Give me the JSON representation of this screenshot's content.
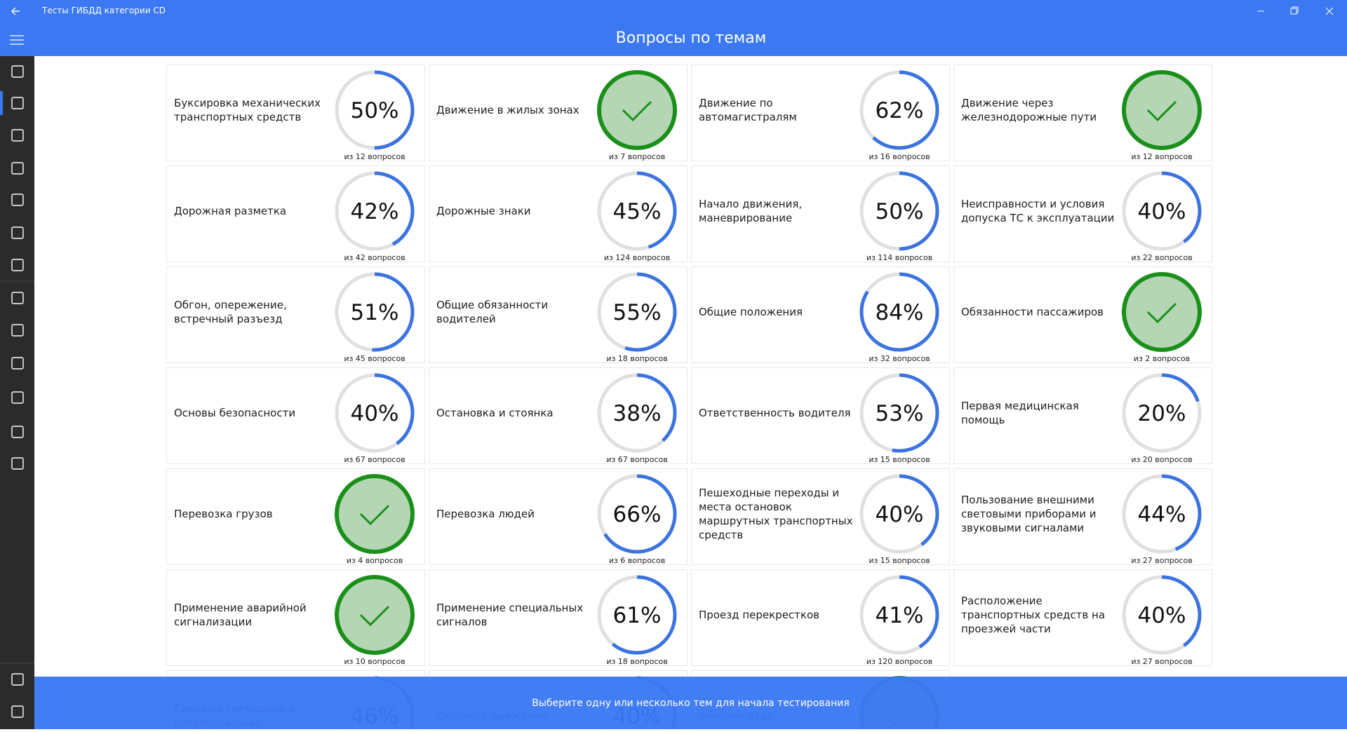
{
  "app_title": "Тесты ГИБДД категории CD",
  "header": {
    "title": "Вопросы по темам"
  },
  "topics": [
    {
      "name": "Буксировка механических транспортных средств",
      "percent": 50,
      "percent_label": "50%",
      "count": "из 12 вопросов"
    },
    {
      "name": "Движение в жилых зонах",
      "completed": true,
      "count": "из 7 вопросов"
    },
    {
      "name": "Движение по автомагистралям",
      "percent": 62,
      "percent_label": "62%",
      "count": "из 16 вопросов"
    },
    {
      "name": "Движение через железнодорожные пути",
      "completed": true,
      "count": "из 12 вопросов"
    },
    {
      "name": "Дорожная разметка",
      "percent": 42,
      "percent_label": "42%",
      "count": "из 42 вопросов"
    },
    {
      "name": "Дорожные знаки",
      "percent": 45,
      "percent_label": "45%",
      "count": "из 124 вопросов"
    },
    {
      "name": "Начало движения, маневрирование",
      "percent": 50,
      "percent_label": "50%",
      "count": "из 114 вопросов"
    },
    {
      "name": "Неисправности и условия допуска ТС к эксплуатации",
      "percent": 40,
      "percent_label": "40%",
      "count": "из 22 вопросов"
    },
    {
      "name": "Обгон, опережение, встречный разъезд",
      "percent": 51,
      "percent_label": "51%",
      "count": "из 45 вопросов"
    },
    {
      "name": "Общие обязанности водителей",
      "percent": 55,
      "percent_label": "55%",
      "count": "из 18 вопросов"
    },
    {
      "name": "Общие положения",
      "percent": 84,
      "percent_label": "84%",
      "count": "из 32 вопросов"
    },
    {
      "name": "Обязанности пассажиров",
      "completed": true,
      "count": "из 2 вопросов"
    },
    {
      "name": "Основы безопасности",
      "percent": 40,
      "percent_label": "40%",
      "count": "из 67 вопросов"
    },
    {
      "name": "Остановка и стоянка",
      "percent": 38,
      "percent_label": "38%",
      "count": "из 67 вопросов"
    },
    {
      "name": "Ответственность водителя",
      "percent": 53,
      "percent_label": "53%",
      "count": "из 15 вопросов"
    },
    {
      "name": "Первая медицинская помощь",
      "percent": 20,
      "percent_label": "20%",
      "count": "из 20 вопросов"
    },
    {
      "name": "Перевозка грузов",
      "completed": true,
      "count": "из 4 вопросов"
    },
    {
      "name": "Перевозка людей",
      "percent": 66,
      "percent_label": "66%",
      "count": "из 6 вопросов"
    },
    {
      "name": "Пешеходные переходы и места остановок маршрутных транспортных средств",
      "percent": 40,
      "percent_label": "40%",
      "count": "из 15 вопросов"
    },
    {
      "name": "Пользование внешними световыми приборами и звуковыми сигналами",
      "percent": 44,
      "percent_label": "44%",
      "count": "из 27 вопросов"
    },
    {
      "name": "Применение аварийной сигнализации",
      "completed": true,
      "count": "из 10 вопросов"
    },
    {
      "name": "Применение специальных сигналов",
      "percent": 61,
      "percent_label": "61%",
      "count": "из 18 вопросов"
    },
    {
      "name": "Проезд перекрестков",
      "percent": 41,
      "percent_label": "41%",
      "count": "из 120 вопросов"
    },
    {
      "name": "Расположение транспортных средств на проезжей части",
      "percent": 40,
      "percent_label": "40%",
      "count": "из 27 вопросов"
    },
    {
      "name": "Сигналы светофора и регулировщика",
      "percent": 46,
      "percent_label": "46%"
    },
    {
      "name": "Скорость движения",
      "percent": 40,
      "percent_label": "40%"
    },
    {
      "name": "Учебная езда",
      "completed": true
    }
  ],
  "footer": {
    "hint": "Выберите одну или несколько тем для начала тестирования"
  }
}
